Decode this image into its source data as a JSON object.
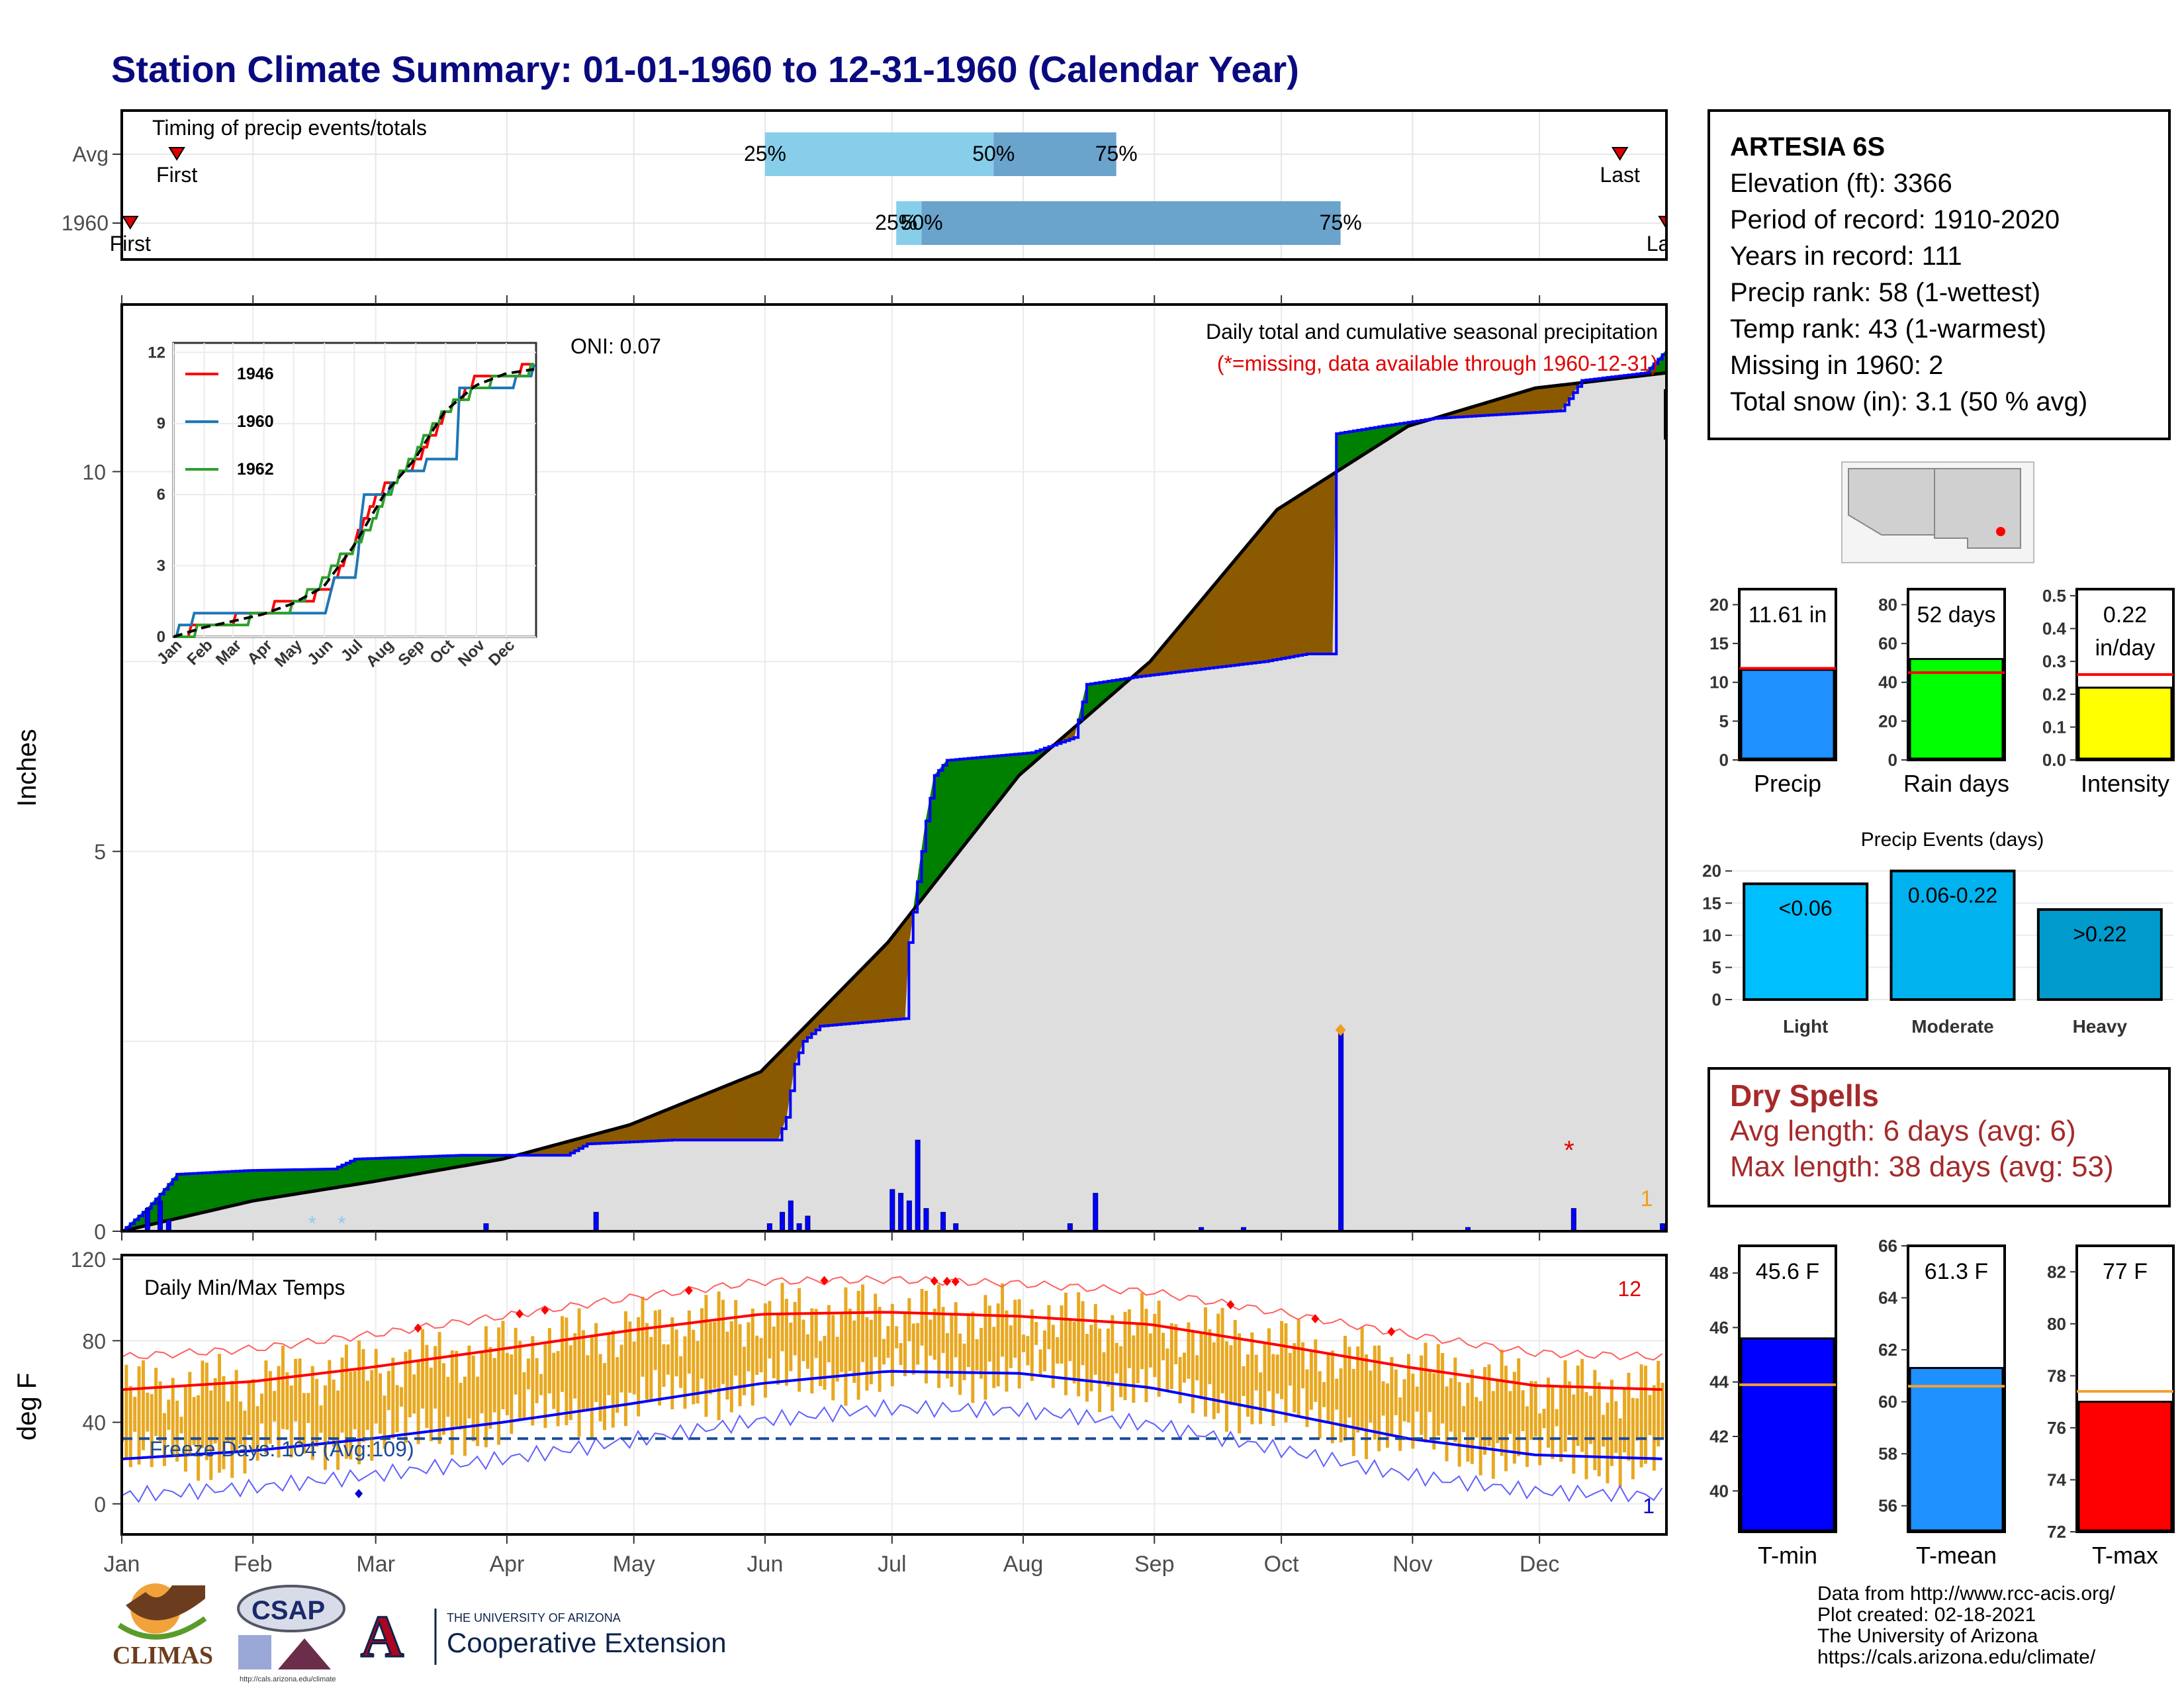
{
  "title": "Station Climate Summary: 01-01-1960 to 12-31-1960 (Calendar Year)",
  "station": {
    "name": "ARTESIA 6S",
    "lines": [
      "Elevation (ft): 3366",
      "Period of record: 1910-2020",
      "Years in record: 111",
      "Precip rank: 58 (1-wettest)",
      "Temp rank: 43 (1-warmest)",
      "Missing in 1960: 2",
      "Total snow (in): 3.1 (50 % avg)"
    ]
  },
  "dry_spells": {
    "title": "Dry Spells",
    "avg_length": "Avg length: 6 days (avg: 6)",
    "max_length": "Max length: 38 days (avg: 53)"
  },
  "footer": {
    "lines": [
      "Data from http://www.rcc-acis.org/",
      "Plot created: 02-18-2021",
      "The University of Arizona",
      "https://cals.arizona.edu/climate/"
    ]
  },
  "logos": {
    "climas": "CLIMAS",
    "csap": "CSAP",
    "csap_url": "http://cals.arizona.edu/climate",
    "ua_small": "THE UNIVERSITY OF ARIZONA",
    "ua_big": "Cooperative Extension",
    "ua_letter": "A"
  },
  "colors": {
    "wet": "#008000",
    "dry": "#8b5a00",
    "obs": "#0000ff",
    "tmax": "#ff0000",
    "tmin": "#0000ff",
    "range": "#e8a820"
  },
  "chart_data": [
    {
      "type": "bar",
      "name": "timing",
      "title": "Timing of precip events/totals",
      "rows": [
        {
          "label": "Avg",
          "first": "Jan 14",
          "q25": "Jun 1",
          "q50": "Jul 25",
          "q75": "Aug 23",
          "last": "Dec 20",
          "first_label": "First",
          "last_label": "Last"
        },
        {
          "label": "1960",
          "first": "Jan 3",
          "q25": "Jul 2",
          "q50": "Jul 8",
          "q75": "Oct 15",
          "last": "Dec 31",
          "first_label": "First",
          "last_label": "Last"
        }
      ],
      "quantile_labels": [
        "25%",
        "50%",
        "75%"
      ]
    },
    {
      "type": "area",
      "name": "cumulative_precip",
      "title": "Daily total and cumulative seasonal precipitation",
      "subtitle": "(*=missing, data available through 1960-12-31)",
      "oni": "ONI: 0.07",
      "ylabel": "Inches",
      "ylim": [
        0,
        12.2
      ],
      "yticks": [
        0,
        5,
        10
      ],
      "annotation": "1",
      "x_ticks": [
        "Jan",
        "Feb",
        "Mar",
        "Apr",
        "May",
        "Jun",
        "Jul",
        "Aug",
        "Sep",
        "Oct",
        "Nov",
        "Dec"
      ],
      "observed_cumulative": [
        [
          0,
          0
        ],
        [
          6,
          0.3
        ],
        [
          10,
          0.55
        ],
        [
          13,
          0.75
        ],
        [
          30,
          0.8
        ],
        [
          50,
          0.82
        ],
        [
          55,
          0.95
        ],
        [
          80,
          1.0
        ],
        [
          105,
          1.0
        ],
        [
          110,
          1.15
        ],
        [
          130,
          1.2
        ],
        [
          155,
          1.2
        ],
        [
          157,
          1.5
        ],
        [
          159,
          2.2
        ],
        [
          161,
          2.5
        ],
        [
          165,
          2.7
        ],
        [
          185,
          2.8
        ],
        [
          186,
          3.8
        ],
        [
          188,
          4.6
        ],
        [
          190,
          5.4
        ],
        [
          192,
          6.0
        ],
        [
          195,
          6.2
        ],
        [
          215,
          6.3
        ],
        [
          225,
          6.5
        ],
        [
          228,
          7.2
        ],
        [
          240,
          7.3
        ],
        [
          270,
          7.5
        ],
        [
          280,
          7.6
        ],
        [
          286,
          7.6
        ],
        [
          287,
          10.5
        ],
        [
          298,
          10.6
        ],
        [
          310,
          10.7
        ],
        [
          340,
          10.8
        ],
        [
          345,
          11.2
        ],
        [
          360,
          11.3
        ],
        [
          365,
          11.6
        ]
      ],
      "average_cumulative": [
        [
          0,
          0
        ],
        [
          31,
          0.4
        ],
        [
          59,
          0.65
        ],
        [
          90,
          0.95
        ],
        [
          120,
          1.4
        ],
        [
          151,
          2.1
        ],
        [
          181,
          3.8
        ],
        [
          212,
          6.0
        ],
        [
          243,
          7.5
        ],
        [
          273,
          9.5
        ],
        [
          304,
          10.6
        ],
        [
          334,
          11.1
        ],
        [
          365,
          11.3
        ]
      ],
      "daily_precip": [
        [
          6,
          0.3
        ],
        [
          9,
          0.4
        ],
        [
          11,
          0.15
        ],
        [
          86,
          0.1
        ],
        [
          112,
          0.25
        ],
        [
          153,
          0.1
        ],
        [
          156,
          0.25
        ],
        [
          158,
          0.4
        ],
        [
          160,
          0.1
        ],
        [
          162,
          0.2
        ],
        [
          182,
          0.55
        ],
        [
          184,
          0.5
        ],
        [
          186,
          0.4
        ],
        [
          188,
          1.2
        ],
        [
          190,
          0.3
        ],
        [
          194,
          0.25
        ],
        [
          197,
          0.1
        ],
        [
          224,
          0.1
        ],
        [
          230,
          0.5
        ],
        [
          255,
          0.05
        ],
        [
          265,
          0.05
        ],
        [
          288,
          2.65
        ],
        [
          318,
          0.05
        ],
        [
          343,
          0.3
        ],
        [
          364,
          0.1
        ]
      ],
      "missing_days": [
        45,
        52,
        342
      ]
    },
    {
      "type": "line",
      "name": "inset",
      "series": [
        {
          "name": "1946",
          "color": "#ff0000"
        },
        {
          "name": "1960",
          "color": "#1f77b4"
        },
        {
          "name": "1962",
          "color": "#2ca02c"
        }
      ],
      "ylim": [
        0,
        12
      ],
      "yticks": [
        0,
        3,
        6,
        9,
        12
      ],
      "x_ticks": [
        "Jan",
        "Feb",
        "Mar",
        "Apr",
        "May",
        "Jun",
        "Jul",
        "Aug",
        "Sep",
        "Oct",
        "Nov",
        "Dec"
      ]
    },
    {
      "type": "line",
      "name": "temps",
      "title": "Daily Min/Max Temps",
      "ylabel": "deg F",
      "ylim": [
        -15,
        122
      ],
      "yticks": [
        0,
        40,
        80,
        120
      ],
      "freeze_text": "Freeze Days: 104 (Avg:109)",
      "record_highs": "12",
      "record_lows": "1",
      "x_ticks": [
        "Jan",
        "Feb",
        "Mar",
        "Apr",
        "May",
        "Jun",
        "Jul",
        "Aug",
        "Sep",
        "Oct",
        "Nov",
        "Dec"
      ],
      "avg_max": [
        [
          0,
          56
        ],
        [
          31,
          60
        ],
        [
          59,
          67
        ],
        [
          90,
          76
        ],
        [
          120,
          85
        ],
        [
          151,
          93
        ],
        [
          181,
          94
        ],
        [
          212,
          92
        ],
        [
          243,
          88
        ],
        [
          273,
          78
        ],
        [
          304,
          67
        ],
        [
          334,
          58
        ],
        [
          365,
          56
        ]
      ],
      "avg_min": [
        [
          0,
          22
        ],
        [
          31,
          26
        ],
        [
          59,
          32
        ],
        [
          90,
          40
        ],
        [
          120,
          49
        ],
        [
          151,
          59
        ],
        [
          181,
          65
        ],
        [
          212,
          64
        ],
        [
          243,
          57
        ],
        [
          273,
          45
        ],
        [
          304,
          32
        ],
        [
          334,
          24
        ],
        [
          365,
          22
        ]
      ]
    },
    {
      "type": "bar",
      "name": "precip_total",
      "value": 11.61,
      "avg": 11.8,
      "label": "11.61 in",
      "xlabel": "Precip",
      "ylim": [
        0,
        22
      ],
      "yticks": [
        0,
        5,
        10,
        15,
        20
      ]
    },
    {
      "type": "bar",
      "name": "rain_days",
      "value": 52,
      "avg": 45,
      "label": "52 days",
      "xlabel": "Rain days",
      "ylim": [
        0,
        88
      ],
      "yticks": [
        0,
        20,
        40,
        60,
        80
      ]
    },
    {
      "type": "bar",
      "name": "intensity",
      "value": 0.22,
      "avg": 0.26,
      "label1": "0.22",
      "label2": "in/day",
      "xlabel": "Intensity",
      "ylim": [
        0,
        0.52
      ],
      "yticks": [
        "0.0",
        "0.1",
        "0.2",
        "0.3",
        "0.4",
        "0.5"
      ]
    },
    {
      "type": "bar",
      "name": "precip_events",
      "title": "Precip Events (days)",
      "categories": [
        "Light",
        "Moderate",
        "Heavy"
      ],
      "values": [
        18,
        20,
        14
      ],
      "labels": [
        "<0.06",
        "0.06-0.22",
        ">0.22"
      ],
      "ylim": [
        0,
        21
      ],
      "yticks": [
        0,
        5,
        10,
        15,
        20
      ]
    },
    {
      "type": "bar",
      "name": "tmin",
      "value": 45.6,
      "avg": 43.9,
      "label": "45.6 F",
      "xlabel": "T-min",
      "ylim": [
        38.5,
        49
      ],
      "yticks": [
        40,
        42,
        44,
        46,
        48
      ]
    },
    {
      "type": "bar",
      "name": "tmean",
      "value": 61.3,
      "avg": 60.6,
      "label": "61.3 F",
      "xlabel": "T-mean",
      "ylim": [
        55,
        66
      ],
      "yticks": [
        56,
        58,
        60,
        62,
        64,
        66
      ]
    },
    {
      "type": "bar",
      "name": "tmax",
      "value": 77,
      "avg": 77.4,
      "label": "77 F",
      "xlabel": "T-max",
      "ylim": [
        72,
        83
      ],
      "yticks": [
        72,
        74,
        76,
        78,
        80,
        82
      ]
    }
  ]
}
